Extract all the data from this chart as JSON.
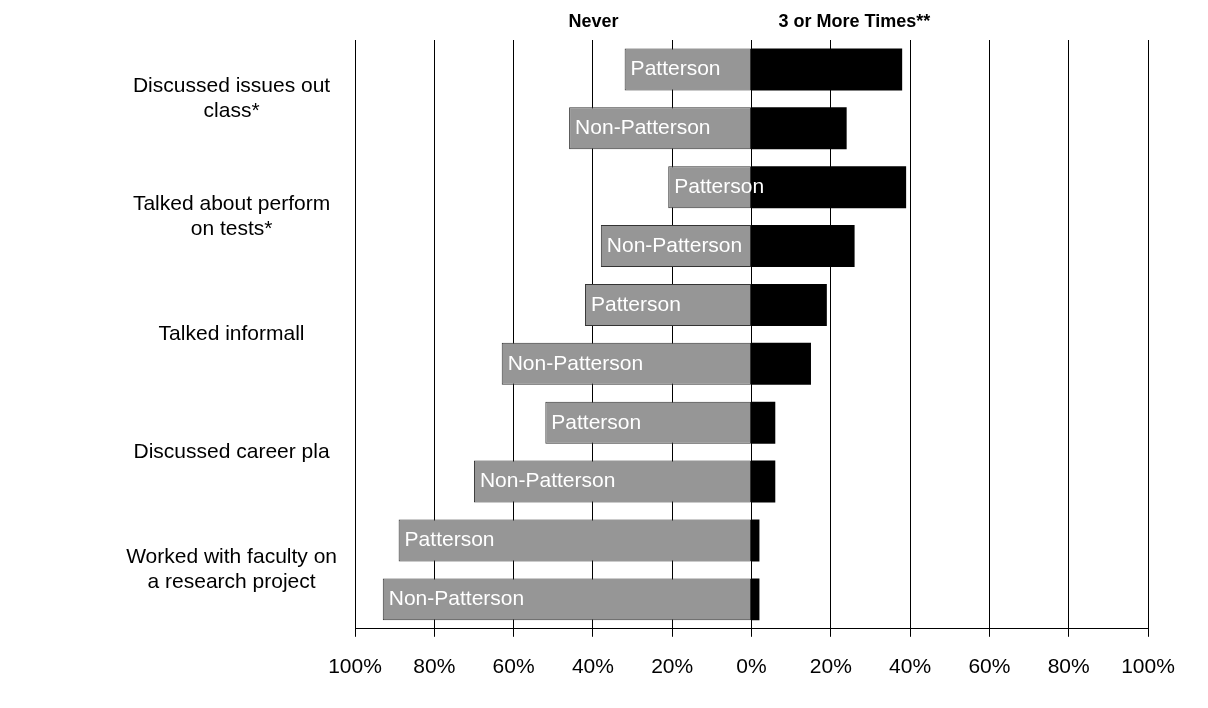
{
  "chart_data": {
    "type": "bar",
    "orientation": "horizontal",
    "stacked": true,
    "categories": [
      "Discussed issues out class*",
      null,
      "Talked about perform on tests*",
      null,
      "Talked informall",
      null,
      "Discussed career pla",
      null,
      "Worked with faculty on a research project",
      null
    ],
    "series": [
      {
        "name": "Never",
        "color": "#969696",
        "values": [
          -32,
          -46,
          -21,
          -38,
          -42,
          -63,
          -52,
          -70,
          -89,
          -93
        ],
        "value_labels": [
          "Patterson",
          "Non-Patterson",
          "Patterson",
          "Non-Patterson",
          "Patterson",
          "Non-Patterson",
          "Patterson",
          "Non-Patterson",
          "Patterson",
          "Non-Patterson"
        ]
      },
      {
        "name": "3 or More Times**",
        "color": "#000000",
        "values": [
          38,
          24,
          39,
          26,
          19,
          15,
          6,
          6,
          2,
          2
        ]
      }
    ],
    "xlim": [
      -100,
      100
    ],
    "xticks": [
      {
        "value": -100,
        "label": "100%"
      },
      {
        "value": -80,
        "label": "80%"
      },
      {
        "value": -60,
        "label": "60%"
      },
      {
        "value": -40,
        "label": "40%"
      },
      {
        "value": -20,
        "label": "20%"
      },
      {
        "value": 0,
        "label": "0%"
      },
      {
        "value": 20,
        "label": "20%"
      },
      {
        "value": 40,
        "label": "40%"
      },
      {
        "value": 60,
        "label": "60%"
      },
      {
        "value": 80,
        "label": "80%"
      },
      {
        "value": 100,
        "label": "100%"
      }
    ],
    "grid": "x",
    "legend": false
  }
}
